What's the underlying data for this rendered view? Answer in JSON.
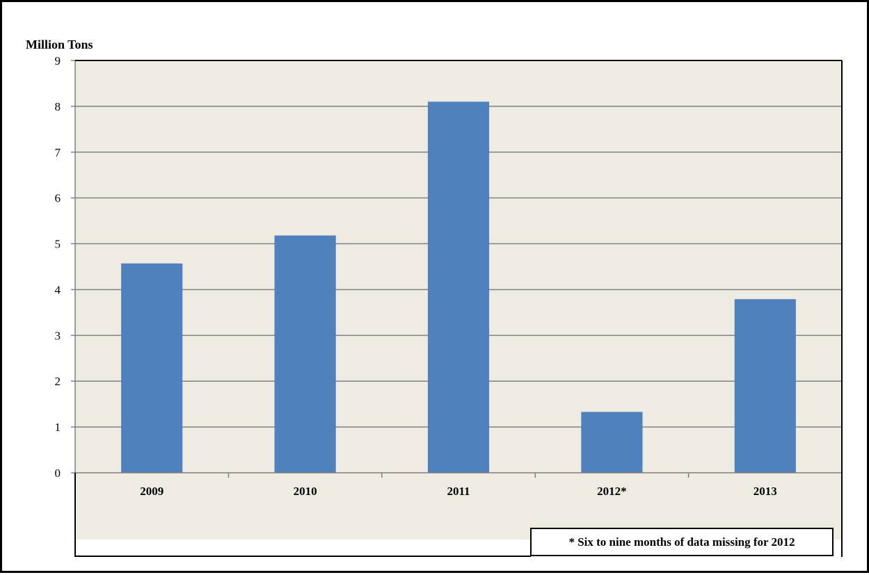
{
  "chart_data": {
    "type": "bar",
    "title": "",
    "xlabel": "",
    "ylabel": "Million Tons",
    "categories": [
      "2009",
      "2010",
      "2011",
      "2012*",
      "2013"
    ],
    "series": [
      {
        "values": [
          4.57,
          5.18,
          8.1,
          1.33,
          3.79
        ],
        "color": "#4f81bd"
      }
    ],
    "ylim": [
      0,
      9
    ],
    "yticks": [
      "0",
      "1",
      "2",
      "3",
      "4",
      "5",
      "6",
      "7",
      "8",
      "9"
    ],
    "grid": true,
    "plot_background": "#eeebe2",
    "legend": "none",
    "annotation": "* Six to nine months of data missing for 2012"
  }
}
